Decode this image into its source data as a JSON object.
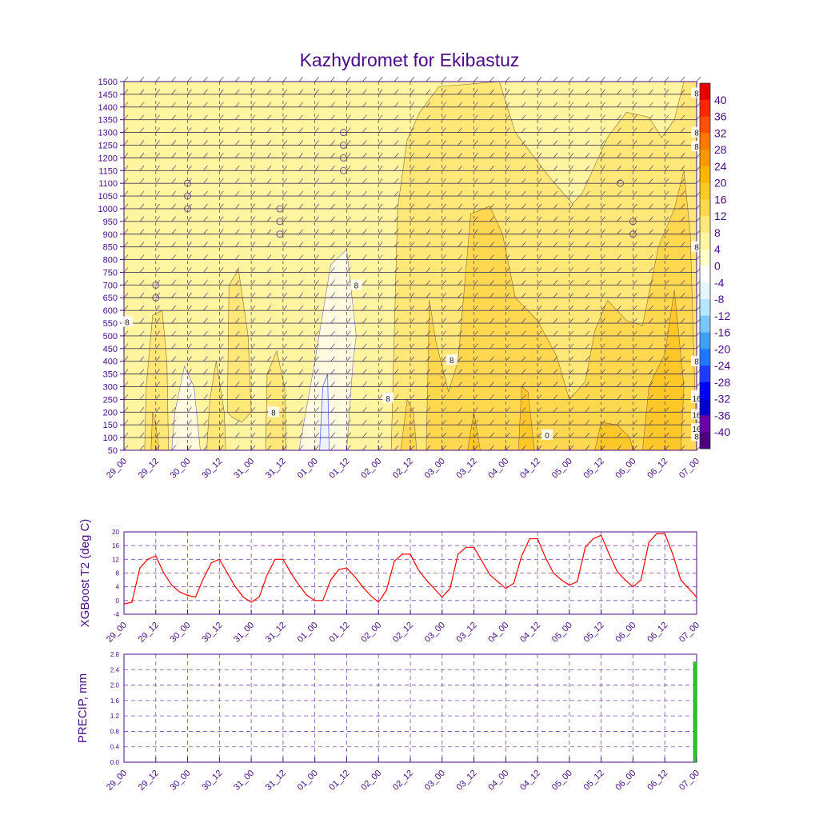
{
  "title": "Kazhydromet for Ekibastuz",
  "colors": {
    "axis": "#4a0a8a",
    "grid": "#7a4ab8",
    "line": "#ff0000",
    "bar": "#22cc22",
    "palette": [
      "#4b0082",
      "#6b00a8",
      "#0000cd",
      "#0000ff",
      "#1e3cff",
      "#1e78ff",
      "#3ca0ff",
      "#78c8ff",
      "#b4e6ff",
      "#e6f5ff",
      "#ffffff",
      "#ffffcc",
      "#fff5a0",
      "#ffe878",
      "#ffd850",
      "#ffc828",
      "#ffb400",
      "#ff9600",
      "#ff7800",
      "#ff5000",
      "#ff2800",
      "#e60000"
    ]
  },
  "chart_data": [
    {
      "type": "heatmap",
      "name": "vertical cross-section",
      "title": "Kazhydromet for Ekibastuz",
      "x_labels": [
        "29_00",
        "29_12",
        "30_00",
        "30_12",
        "31_00",
        "31_12",
        "01_00",
        "01_12",
        "02_00",
        "02_12",
        "03_00",
        "03_12",
        "04_00",
        "04_12",
        "05_00",
        "05_12",
        "06_00",
        "06_12",
        "07_00"
      ],
      "y_labels": [
        "1500",
        "1450",
        "1400",
        "1350",
        "1300",
        "1250",
        "1200",
        "1150",
        "1100",
        "1050",
        "1000",
        "950",
        "900",
        "850",
        "800",
        "750",
        "700",
        "650",
        "600",
        "550",
        "500",
        "450",
        "400",
        "350",
        "300",
        "250",
        "200",
        "150",
        "100",
        "50"
      ],
      "ylim": [
        50,
        1500
      ],
      "colorbar_labels": [
        "40",
        "36",
        "32",
        "28",
        "24",
        "20",
        "16",
        "12",
        "8",
        "4",
        "0",
        "-4",
        "-8",
        "-12",
        "-16",
        "-20",
        "-24",
        "-28",
        "-32",
        "-36",
        "-40"
      ],
      "contour_labels": [
        {
          "text": "8",
          "x": 28.4,
          "y": 555
        },
        {
          "text": "8",
          "x": 32,
          "y": 700
        },
        {
          "text": "8",
          "x": 32.5,
          "y": 255
        },
        {
          "text": "8",
          "x": 30.7,
          "y": 200
        },
        {
          "text": "8",
          "x": 33.5,
          "y": 405
        },
        {
          "text": "0",
          "x": 35.0,
          "y": 110
        },
        {
          "text": "8",
          "x": 38.0,
          "y": 400
        },
        {
          "text": "8",
          "x": 38.6,
          "y": 850
        },
        {
          "text": "8",
          "x": 39.0,
          "y": 105
        },
        {
          "text": "8",
          "x": 39.6,
          "y": 1300
        },
        {
          "text": "16",
          "x": 40.2,
          "y": 135
        },
        {
          "text": "8",
          "x": 41.1,
          "y": 1455
        },
        {
          "text": "16",
          "x": 41.5,
          "y": 190
        },
        {
          "text": "16",
          "x": 42.9,
          "y": 265
        },
        {
          "text": "8",
          "x": 44.0,
          "y": 1245
        },
        {
          "text": "16",
          "x": 44.4,
          "y": 255
        }
      ]
    },
    {
      "type": "line",
      "name": "XGBoost T2",
      "ylabel": "XGBoost T2 (deg C)",
      "ylim": [
        -4,
        20
      ],
      "y_ticks": [
        "-4",
        "0",
        "4",
        "8",
        "12",
        "16",
        "20"
      ],
      "x_labels": [
        "29_00",
        "29_12",
        "30_00",
        "30_12",
        "31_00",
        "31_12",
        "01_00",
        "01_12",
        "02_00",
        "02_12",
        "03_00",
        "03_12",
        "04_00",
        "04_12",
        "05_00",
        "05_12",
        "06_00",
        "06_12",
        "07_00"
      ],
      "series": [
        {
          "name": "T2",
          "values": [
            -1.0,
            -0.5,
            9.5,
            12.0,
            13.0,
            8.0,
            4.5,
            2.5,
            1.5,
            1.0,
            6.5,
            11.0,
            12.0,
            8.0,
            4.0,
            1.0,
            -0.5,
            1.0,
            7.5,
            12.0,
            12.0,
            8.0,
            4.5,
            1.5,
            0.0,
            0.0,
            6.0,
            9.0,
            9.5,
            7.0,
            4.0,
            1.5,
            -0.5,
            3.0,
            11.5,
            13.5,
            13.5,
            9.0,
            6.0,
            3.5,
            1.0,
            3.5,
            13.5,
            15.5,
            15.5,
            11.5,
            7.5,
            5.5,
            3.5,
            5.0,
            13.0,
            18.0,
            18.0,
            12.5,
            8.0,
            6.0,
            4.5,
            5.5,
            15.5,
            18.0,
            19.0,
            13.5,
            8.5,
            6.0,
            4.0,
            6.0,
            17.0,
            19.5,
            19.5,
            13.5,
            6.0,
            3.5,
            1.0
          ]
        }
      ]
    },
    {
      "type": "bar",
      "name": "PRECIP",
      "ylabel": "PRECIP, mm",
      "ylim": [
        0,
        2.8
      ],
      "y_ticks": [
        "0.0",
        "0.4",
        "0.8",
        "1.2",
        "1.6",
        "2.0",
        "2.4",
        "2.8"
      ],
      "x_labels": [
        "29_00",
        "29_12",
        "30_00",
        "30_12",
        "31_00",
        "31_12",
        "01_00",
        "01_12",
        "02_00",
        "02_12",
        "03_00",
        "03_12",
        "04_00",
        "04_12",
        "05_00",
        "05_12",
        "06_00",
        "06_12",
        "07_00"
      ],
      "bars": [
        {
          "x_index": 17.9,
          "value": 2.6
        }
      ]
    }
  ]
}
